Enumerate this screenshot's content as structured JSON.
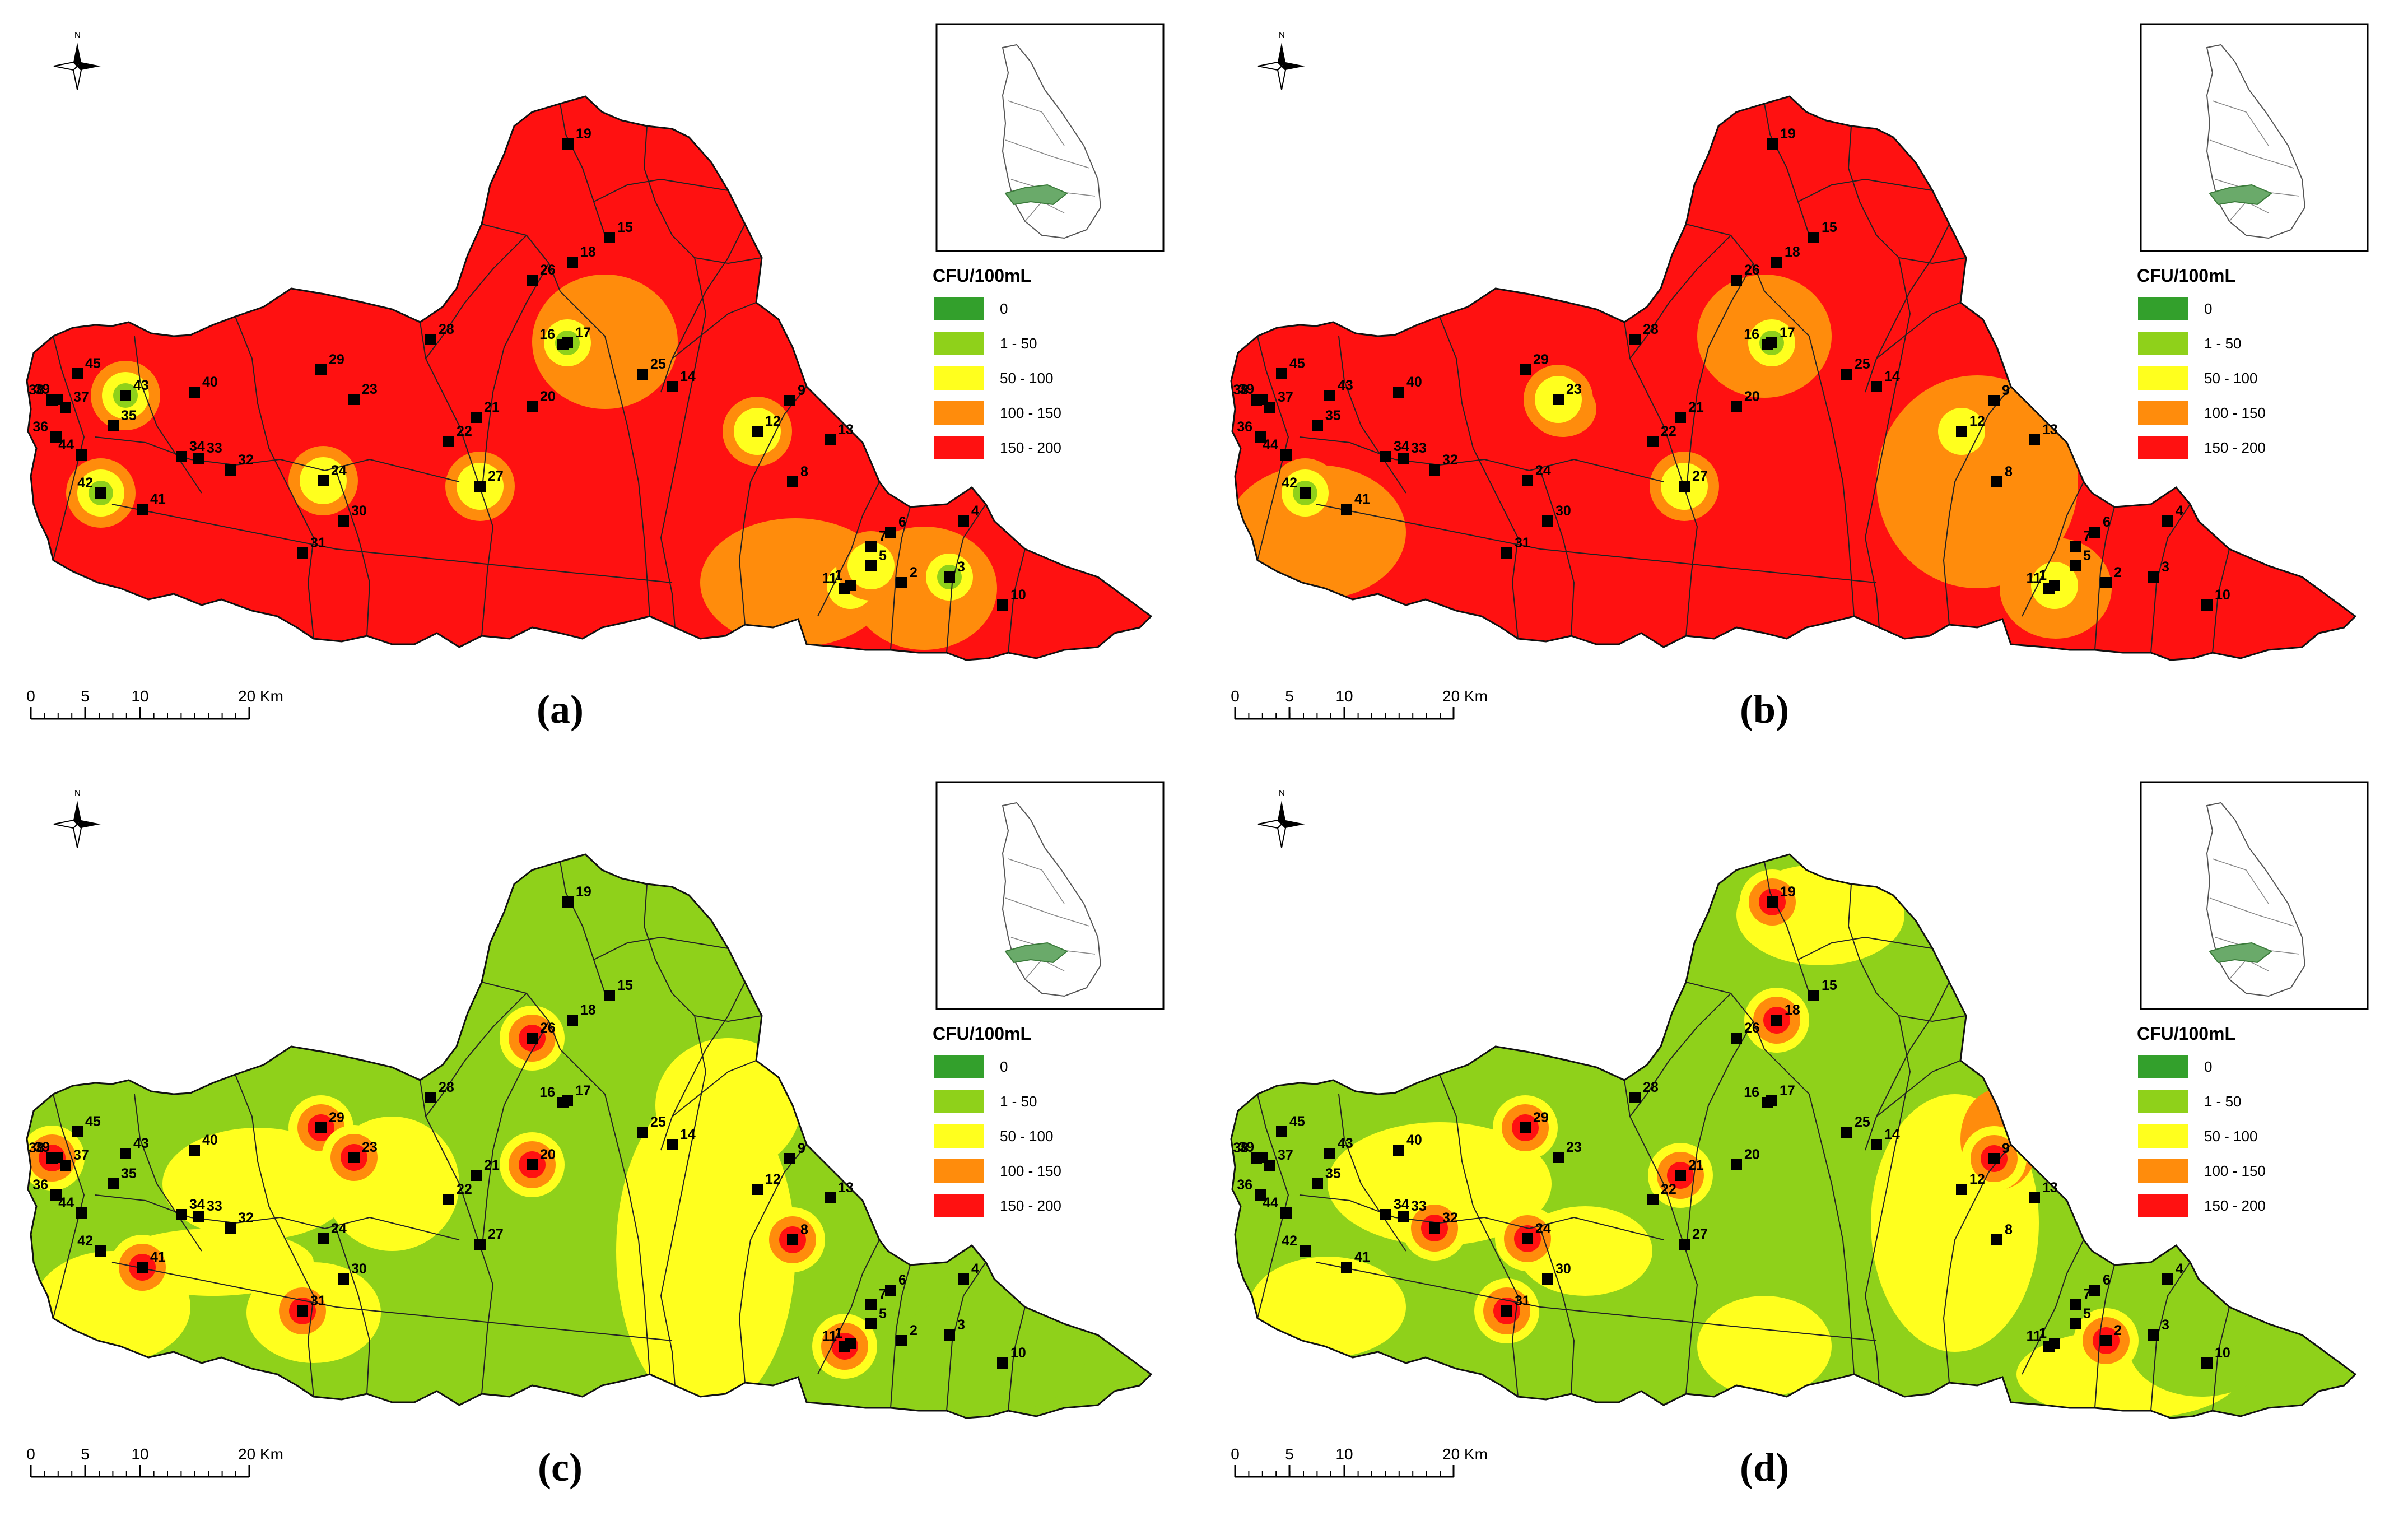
{
  "legend": {
    "title": "CFU/100mL",
    "classes": [
      {
        "label": "0",
        "color": "#33a02c"
      },
      {
        "label": "1 - 50",
        "color": "#8fd11a"
      },
      {
        "label": "50 - 100",
        "color": "#ffff1e"
      },
      {
        "label": "100 - 150",
        "color": "#ff8c0c"
      },
      {
        "label": "150 - 200",
        "color": "#ff1111"
      }
    ]
  },
  "north_label": "N",
  "scale_bar": {
    "ticks": [
      "0",
      "5",
      "10",
      "20 Km"
    ]
  },
  "station_ids": [
    "1",
    "2",
    "3",
    "4",
    "5",
    "6",
    "7",
    "8",
    "9",
    "10",
    "11",
    "12",
    "13",
    "14",
    "15",
    "16",
    "17",
    "18",
    "19",
    "20",
    "21",
    "22",
    "23",
    "24",
    "25",
    "26",
    "27",
    "28",
    "29",
    "30",
    "31",
    "32",
    "33",
    "34",
    "35",
    "36",
    "37",
    "38",
    "39",
    "40",
    "41",
    "42",
    "43",
    "44",
    "45"
  ],
  "panels": [
    {
      "caption": "(a)",
      "base_class": "150 - 200",
      "hotspots": [
        {
          "station": "43",
          "class": "1 - 50"
        },
        {
          "station": "42",
          "class": "1 - 50"
        },
        {
          "station": "17",
          "class": "1 - 50"
        },
        {
          "station": "3",
          "class": "1 - 50"
        },
        {
          "station": "12",
          "class": "50 - 100"
        },
        {
          "station": "27",
          "class": "50 - 100"
        },
        {
          "station": "24",
          "class": "50 - 100"
        },
        {
          "station": "1",
          "class": "50 - 100"
        },
        {
          "station": "5",
          "class": "50 - 100"
        }
      ]
    },
    {
      "caption": "(b)",
      "base_class": "150 - 200",
      "hotspots": [
        {
          "station": "17",
          "class": "1 - 50"
        },
        {
          "station": "42",
          "class": "1 - 50"
        },
        {
          "station": "12",
          "class": "50 - 100"
        },
        {
          "station": "27",
          "class": "50 - 100"
        },
        {
          "station": "1",
          "class": "50 - 100"
        },
        {
          "station": "23",
          "class": "100 - 150"
        }
      ]
    },
    {
      "caption": "(c)",
      "base_class": "1 - 50",
      "hotspots": [
        {
          "station": "41",
          "class": "150 - 200"
        },
        {
          "station": "31",
          "class": "150 - 200"
        },
        {
          "station": "20",
          "class": "150 - 200"
        },
        {
          "station": "26",
          "class": "150 - 200"
        },
        {
          "station": "29",
          "class": "150 - 200"
        },
        {
          "station": "23",
          "class": "150 - 200"
        },
        {
          "station": "11",
          "class": "150 - 200"
        },
        {
          "station": "8",
          "class": "150 - 200"
        },
        {
          "station": "38",
          "class": "150 - 200"
        }
      ]
    },
    {
      "caption": "(d)",
      "base_class": "1 - 50",
      "hotspots": [
        {
          "station": "19",
          "class": "150 - 200"
        },
        {
          "station": "21",
          "class": "150 - 200"
        },
        {
          "station": "31",
          "class": "150 - 200"
        },
        {
          "station": "2",
          "class": "150 - 200"
        },
        {
          "station": "9",
          "class": "150 - 200"
        },
        {
          "station": "29",
          "class": "150 - 200"
        },
        {
          "station": "32",
          "class": "150 - 200"
        },
        {
          "station": "24",
          "class": "150 - 200"
        },
        {
          "station": "18",
          "class": "150 - 200"
        }
      ]
    }
  ]
}
